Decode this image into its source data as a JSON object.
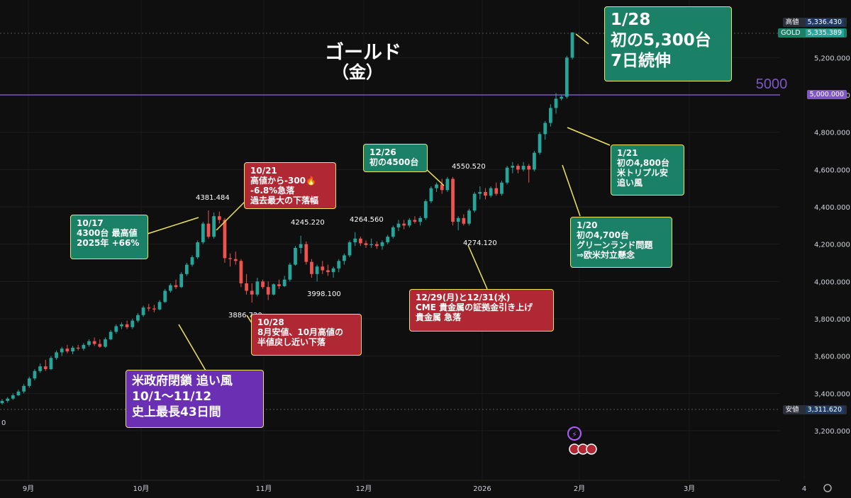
{
  "title": {
    "line1": "ゴールド",
    "line2": "（金）"
  },
  "chart_data": {
    "type": "candlestick",
    "symbol": "GOLD",
    "ylim": [
      3100,
      5450
    ],
    "yticks": [
      3200,
      3400,
      3600,
      3800,
      4000,
      4200,
      4400,
      4600,
      4800,
      5000,
      5200
    ],
    "ytick_labels": [
      "3,200.000",
      "3,400.000",
      "3,600.000",
      "3,800.000",
      "4,000.000",
      "4,200.000",
      "4,400.000",
      "4,600.000",
      "4,800.000",
      "5,000.000",
      "5,200.000"
    ],
    "xticks": [
      "9月",
      "10月",
      "11月",
      "12月",
      "2026",
      "2月",
      "3月",
      "4"
    ],
    "horizontal_line": {
      "value": 5000,
      "label": "5000",
      "axis_label": "5,000.000",
      "color": "#7e57c2"
    },
    "high": {
      "label": "高値",
      "value": "5,336.430"
    },
    "low": {
      "label": "安値",
      "value": "3,311.620"
    },
    "last": {
      "label": "GOLD",
      "value": "5,335.389"
    },
    "price_annotations": [
      "4381.484",
      "4245.220",
      "4264.560",
      "4550.520",
      "3886.720",
      "3998.100",
      "4274.120"
    ],
    "candles": [
      {
        "o": 3348,
        "h": 3370,
        "l": 3340,
        "c": 3360
      },
      {
        "o": 3360,
        "h": 3380,
        "l": 3350,
        "c": 3372
      },
      {
        "o": 3372,
        "h": 3400,
        "l": 3365,
        "c": 3390
      },
      {
        "o": 3390,
        "h": 3420,
        "l": 3385,
        "c": 3410
      },
      {
        "o": 3410,
        "h": 3450,
        "l": 3400,
        "c": 3440
      },
      {
        "o": 3440,
        "h": 3490,
        "l": 3430,
        "c": 3480
      },
      {
        "o": 3480,
        "h": 3530,
        "l": 3470,
        "c": 3520
      },
      {
        "o": 3520,
        "h": 3560,
        "l": 3510,
        "c": 3545
      },
      {
        "o": 3545,
        "h": 3580,
        "l": 3520,
        "c": 3530
      },
      {
        "o": 3530,
        "h": 3600,
        "l": 3525,
        "c": 3590
      },
      {
        "o": 3590,
        "h": 3630,
        "l": 3580,
        "c": 3620
      },
      {
        "o": 3620,
        "h": 3650,
        "l": 3600,
        "c": 3640
      },
      {
        "o": 3640,
        "h": 3660,
        "l": 3615,
        "c": 3625
      },
      {
        "o": 3625,
        "h": 3655,
        "l": 3610,
        "c": 3645
      },
      {
        "o": 3645,
        "h": 3660,
        "l": 3630,
        "c": 3640
      },
      {
        "o": 3640,
        "h": 3670,
        "l": 3630,
        "c": 3660
      },
      {
        "o": 3660,
        "h": 3690,
        "l": 3650,
        "c": 3680
      },
      {
        "o": 3680,
        "h": 3700,
        "l": 3655,
        "c": 3665
      },
      {
        "o": 3665,
        "h": 3690,
        "l": 3645,
        "c": 3650
      },
      {
        "o": 3650,
        "h": 3700,
        "l": 3645,
        "c": 3690
      },
      {
        "o": 3690,
        "h": 3740,
        "l": 3685,
        "c": 3730
      },
      {
        "o": 3730,
        "h": 3770,
        "l": 3720,
        "c": 3760
      },
      {
        "o": 3760,
        "h": 3780,
        "l": 3745,
        "c": 3770
      },
      {
        "o": 3770,
        "h": 3790,
        "l": 3745,
        "c": 3755
      },
      {
        "o": 3755,
        "h": 3800,
        "l": 3745,
        "c": 3790
      },
      {
        "o": 3790,
        "h": 3830,
        "l": 3780,
        "c": 3820
      },
      {
        "o": 3820,
        "h": 3870,
        "l": 3810,
        "c": 3860
      },
      {
        "o": 3860,
        "h": 3880,
        "l": 3840,
        "c": 3855
      },
      {
        "o": 3855,
        "h": 3875,
        "l": 3835,
        "c": 3850
      },
      {
        "o": 3850,
        "h": 3900,
        "l": 3845,
        "c": 3890
      },
      {
        "o": 3890,
        "h": 3960,
        "l": 3885,
        "c": 3950
      },
      {
        "o": 3950,
        "h": 3990,
        "l": 3940,
        "c": 3980
      },
      {
        "o": 3980,
        "h": 4010,
        "l": 3960,
        "c": 3970
      },
      {
        "o": 3970,
        "h": 4050,
        "l": 3965,
        "c": 4040
      },
      {
        "o": 4040,
        "h": 4100,
        "l": 4030,
        "c": 4090
      },
      {
        "o": 4090,
        "h": 4140,
        "l": 4080,
        "c": 4130
      },
      {
        "o": 4130,
        "h": 4220,
        "l": 4120,
        "c": 4210
      },
      {
        "o": 4210,
        "h": 4320,
        "l": 4200,
        "c": 4310
      },
      {
        "o": 4310,
        "h": 4381,
        "l": 4230,
        "c": 4240
      },
      {
        "o": 4240,
        "h": 4370,
        "l": 4230,
        "c": 4350
      },
      {
        "o": 4350,
        "h": 4375,
        "l": 4310,
        "c": 4330
      },
      {
        "o": 4330,
        "h": 4340,
        "l": 4100,
        "c": 4125
      },
      {
        "o": 4125,
        "h": 4150,
        "l": 4080,
        "c": 4120
      },
      {
        "o": 4120,
        "h": 4160,
        "l": 4090,
        "c": 4110
      },
      {
        "o": 4110,
        "h": 4120,
        "l": 3970,
        "c": 3990
      },
      {
        "o": 3990,
        "h": 4040,
        "l": 3930,
        "c": 3950
      },
      {
        "o": 3950,
        "h": 3990,
        "l": 3887,
        "c": 3930
      },
      {
        "o": 3930,
        "h": 4020,
        "l": 3920,
        "c": 4000
      },
      {
        "o": 4000,
        "h": 4010,
        "l": 3960,
        "c": 3970
      },
      {
        "o": 3970,
        "h": 4000,
        "l": 3900,
        "c": 3930
      },
      {
        "o": 3930,
        "h": 3990,
        "l": 3925,
        "c": 3985
      },
      {
        "o": 3985,
        "h": 4010,
        "l": 3960,
        "c": 3975
      },
      {
        "o": 3975,
        "h": 4030,
        "l": 3970,
        "c": 4010
      },
      {
        "o": 4010,
        "h": 4100,
        "l": 4000,
        "c": 4090
      },
      {
        "o": 4090,
        "h": 4190,
        "l": 4085,
        "c": 4180
      },
      {
        "o": 4180,
        "h": 4245,
        "l": 4150,
        "c": 4200
      },
      {
        "o": 4200,
        "h": 4215,
        "l": 4090,
        "c": 4105
      },
      {
        "o": 4105,
        "h": 4120,
        "l": 4020,
        "c": 4040
      },
      {
        "o": 4040,
        "h": 4090,
        "l": 4000,
        "c": 4080
      },
      {
        "o": 4080,
        "h": 4110,
        "l": 4040,
        "c": 4060
      },
      {
        "o": 4060,
        "h": 4090,
        "l": 4030,
        "c": 4050
      },
      {
        "o": 4050,
        "h": 4080,
        "l": 4020,
        "c": 4070
      },
      {
        "o": 4070,
        "h": 4120,
        "l": 4050,
        "c": 4110
      },
      {
        "o": 4110,
        "h": 4150,
        "l": 4090,
        "c": 4140
      },
      {
        "o": 4140,
        "h": 4220,
        "l": 4130,
        "c": 4210
      },
      {
        "o": 4210,
        "h": 4264,
        "l": 4190,
        "c": 4230
      },
      {
        "o": 4230,
        "h": 4240,
        "l": 4190,
        "c": 4205
      },
      {
        "o": 4205,
        "h": 4220,
        "l": 4180,
        "c": 4195
      },
      {
        "o": 4195,
        "h": 4230,
        "l": 4180,
        "c": 4200
      },
      {
        "o": 4200,
        "h": 4215,
        "l": 4175,
        "c": 4190
      },
      {
        "o": 4190,
        "h": 4220,
        "l": 4170,
        "c": 4210
      },
      {
        "o": 4210,
        "h": 4250,
        "l": 4200,
        "c": 4240
      },
      {
        "o": 4240,
        "h": 4300,
        "l": 4230,
        "c": 4290
      },
      {
        "o": 4290,
        "h": 4330,
        "l": 4270,
        "c": 4310
      },
      {
        "o": 4310,
        "h": 4330,
        "l": 4280,
        "c": 4300
      },
      {
        "o": 4300,
        "h": 4340,
        "l": 4290,
        "c": 4330
      },
      {
        "o": 4330,
        "h": 4350,
        "l": 4310,
        "c": 4320
      },
      {
        "o": 4320,
        "h": 4350,
        "l": 4300,
        "c": 4340
      },
      {
        "o": 4340,
        "h": 4440,
        "l": 4330,
        "c": 4430
      },
      {
        "o": 4430,
        "h": 4510,
        "l": 4420,
        "c": 4500
      },
      {
        "o": 4500,
        "h": 4530,
        "l": 4480,
        "c": 4520
      },
      {
        "o": 4520,
        "h": 4550,
        "l": 4470,
        "c": 4490
      },
      {
        "o": 4490,
        "h": 4560,
        "l": 4480,
        "c": 4550
      },
      {
        "o": 4550,
        "h": 4560,
        "l": 4300,
        "c": 4320
      },
      {
        "o": 4320,
        "h": 4350,
        "l": 4274,
        "c": 4340
      },
      {
        "o": 4340,
        "h": 4360,
        "l": 4300,
        "c": 4310
      },
      {
        "o": 4310,
        "h": 4390,
        "l": 4300,
        "c": 4380
      },
      {
        "o": 4380,
        "h": 4480,
        "l": 4370,
        "c": 4470
      },
      {
        "o": 4470,
        "h": 4510,
        "l": 4440,
        "c": 4480
      },
      {
        "o": 4480,
        "h": 4500,
        "l": 4440,
        "c": 4460
      },
      {
        "o": 4460,
        "h": 4510,
        "l": 4450,
        "c": 4500
      },
      {
        "o": 4500,
        "h": 4530,
        "l": 4460,
        "c": 4470
      },
      {
        "o": 4470,
        "h": 4540,
        "l": 4460,
        "c": 4530
      },
      {
        "o": 4530,
        "h": 4620,
        "l": 4520,
        "c": 4610
      },
      {
        "o": 4610,
        "h": 4640,
        "l": 4580,
        "c": 4620
      },
      {
        "o": 4620,
        "h": 4630,
        "l": 4580,
        "c": 4600
      },
      {
        "o": 4600,
        "h": 4640,
        "l": 4590,
        "c": 4620
      },
      {
        "o": 4620,
        "h": 4630,
        "l": 4530,
        "c": 4600
      },
      {
        "o": 4600,
        "h": 4700,
        "l": 4590,
        "c": 4690
      },
      {
        "o": 4690,
        "h": 4800,
        "l": 4680,
        "c": 4790
      },
      {
        "o": 4790,
        "h": 4860,
        "l": 4760,
        "c": 4850
      },
      {
        "o": 4850,
        "h": 4950,
        "l": 4830,
        "c": 4930
      },
      {
        "o": 4930,
        "h": 5010,
        "l": 4900,
        "c": 4980
      },
      {
        "o": 4980,
        "h": 5000,
        "l": 4970,
        "c": 4990
      },
      {
        "o": 4990,
        "h": 5210,
        "l": 4980,
        "c": 5200
      },
      {
        "o": 5200,
        "h": 5336,
        "l": 5190,
        "c": 5335
      }
    ]
  },
  "callouts": [
    {
      "text": "1/28\n初の5,300台\n7日続伸"
    },
    {
      "text": "10/21\n高値から-300🔥\n-6.8%急落\n過去最大の下落幅"
    },
    {
      "text": "10/17\n4300台 最高値\n2025年 +66%"
    },
    {
      "text": "12/26\n初の4500台"
    },
    {
      "text": "1/21\n初の4,800台\n米トリプル安\n追い風"
    },
    {
      "text": "1/20\n初の4,700台\nグリーンランド問題\n⇒欧米対立懸念"
    },
    {
      "text": "12/29(月)と12/31(水)\nCME 貴金属の証拠金引き上げ\n貴金属 急落"
    },
    {
      "text": "10/28\n8月安値、10月高値の\n半値戻し近い下落"
    },
    {
      "text": "米政府閉鎖 追い風\n10/1～11/12\n史上最長43日間"
    }
  ],
  "left_edge_label": "0",
  "colors": {
    "up": "#26a69a",
    "down": "#ef5350",
    "bg": "#0f0f0f",
    "grid": "#2a2a2a"
  }
}
